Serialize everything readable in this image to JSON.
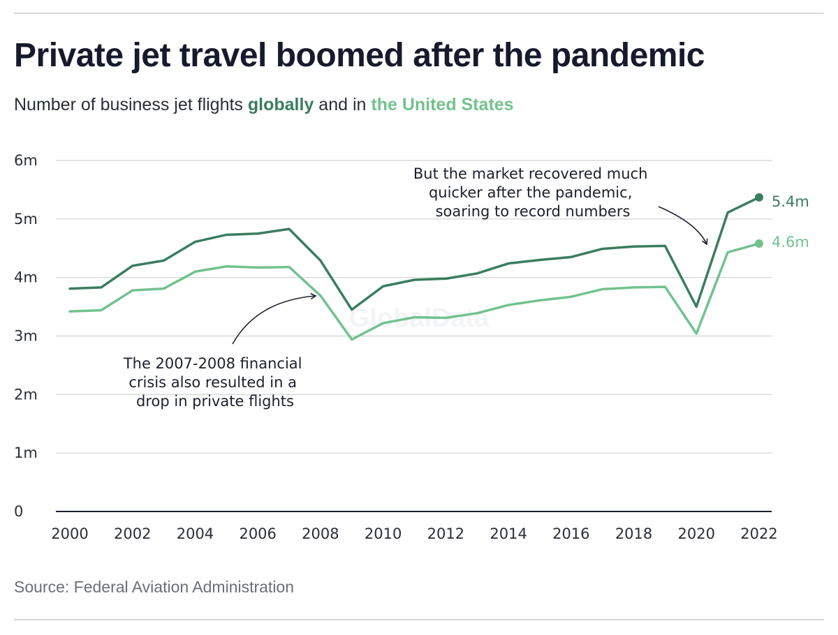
{
  "title": "Private jet travel boomed after the pandemic",
  "subtitle": {
    "prefix": "Number of business jet flights ",
    "series_a": "globally",
    "middle": " and in ",
    "series_b": "the United States"
  },
  "source": "Source: Federal Aviation Administration",
  "watermark": "GlobalData",
  "colors": {
    "global": "#3a7d5f",
    "us": "#72c28f",
    "grid": "#cfd1d4",
    "axis": "#1c1f2e"
  },
  "chart_data": {
    "type": "line",
    "title": "Private jet travel boomed after the pandemic",
    "xlabel": "",
    "ylabel": "",
    "x": [
      2000,
      2001,
      2002,
      2003,
      2004,
      2005,
      2006,
      2007,
      2008,
      2009,
      2010,
      2011,
      2012,
      2013,
      2014,
      2015,
      2016,
      2017,
      2018,
      2019,
      2020,
      2021,
      2022
    ],
    "ylim": [
      0,
      6
    ],
    "yticks": [
      0,
      1,
      2,
      3,
      4,
      5,
      6
    ],
    "ytick_labels": [
      "0",
      "1m",
      "2m",
      "3m",
      "4m",
      "5m",
      "6m"
    ],
    "xticks": [
      2000,
      2002,
      2004,
      2006,
      2008,
      2010,
      2012,
      2014,
      2016,
      2018,
      2020,
      2022
    ],
    "xtick_labels": [
      "2000",
      "2002",
      "2004",
      "2006",
      "2008",
      "2010",
      "2012",
      "2014",
      "2016",
      "2018",
      "2020",
      "2022"
    ],
    "grid": true,
    "series": [
      {
        "name": "globally",
        "values": [
          3.81,
          3.83,
          4.2,
          4.29,
          4.61,
          4.73,
          4.75,
          4.83,
          4.29,
          3.45,
          3.85,
          3.96,
          3.98,
          4.07,
          4.24,
          4.3,
          4.35,
          4.49,
          4.53,
          4.54,
          3.5,
          5.11,
          5.37
        ],
        "end_label": "5.4m"
      },
      {
        "name": "the United States",
        "values": [
          3.42,
          3.44,
          3.78,
          3.81,
          4.1,
          4.19,
          4.17,
          4.18,
          3.69,
          2.94,
          3.22,
          3.32,
          3.31,
          3.39,
          3.53,
          3.61,
          3.67,
          3.8,
          3.83,
          3.84,
          3.04,
          4.43,
          4.58
        ],
        "end_label": "4.6m"
      }
    ],
    "annotations": [
      {
        "lines": [
          "The 2007-2008 financial",
          "crisis also resulted in a",
          "drop in private flights"
        ],
        "points_to": [
          2008,
          3.69
        ]
      },
      {
        "lines": [
          "But the market recovered much",
          "quicker after the pandemic,",
          "soaring to record numbers"
        ],
        "points_to": [
          2020.5,
          4.6
        ]
      }
    ]
  }
}
